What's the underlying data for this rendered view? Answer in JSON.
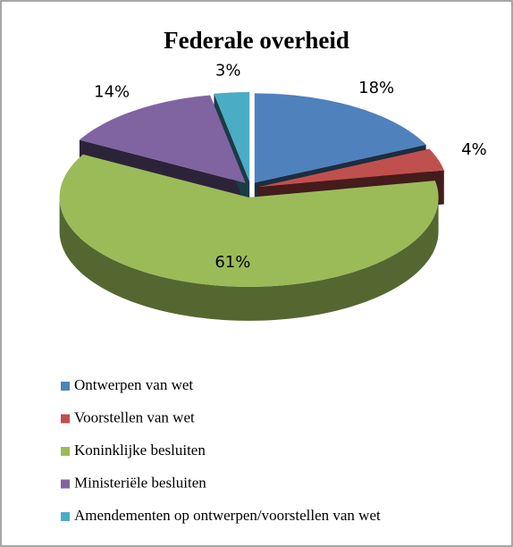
{
  "chart_data": {
    "type": "pie",
    "title": "Federale overheid",
    "categories": [
      "Ontwerpen van wet",
      "Voorstellen van wet",
      "Koninklijke besluiten",
      "Ministeriële besluiten",
      "Amendementen op ontwerpen/voorstellen van wet"
    ],
    "values": [
      18,
      4,
      61,
      14,
      3
    ],
    "value_labels": [
      "18%",
      "4%",
      "61%",
      "14%",
      "3%"
    ],
    "colors": [
      "#4f81bd",
      "#c0504d",
      "#9bbb59",
      "#8064a2",
      "#4bacc6"
    ],
    "legend": "bottom"
  }
}
